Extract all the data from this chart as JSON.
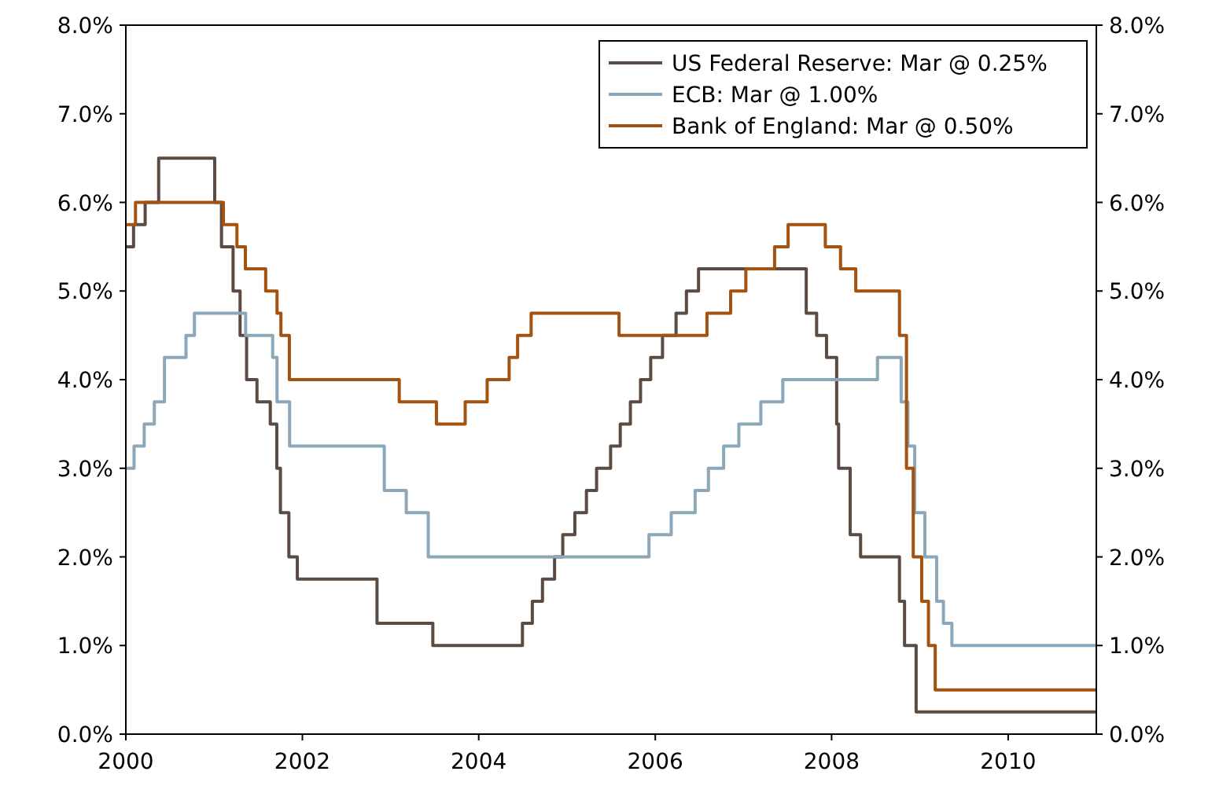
{
  "chart_data": {
    "type": "step",
    "xlim": [
      "2000-01-01",
      "2011-01-01"
    ],
    "xticks": [
      "2000",
      "2002",
      "2004",
      "2006",
      "2008",
      "2010"
    ],
    "ylim": [
      0,
      8
    ],
    "yticks": [
      {
        "value": 0,
        "label": "0.0%"
      },
      {
        "value": 1,
        "label": "1.0%"
      },
      {
        "value": 2,
        "label": "2.0%"
      },
      {
        "value": 3,
        "label": "3.0%"
      },
      {
        "value": 4,
        "label": "4.0%"
      },
      {
        "value": 5,
        "label": "5.0%"
      },
      {
        "value": 6,
        "label": "6.0%"
      },
      {
        "value": 7,
        "label": "7.0%"
      },
      {
        "value": 8,
        "label": "8.0%"
      }
    ],
    "y2lim": [
      0,
      8
    ],
    "y2ticks": [
      {
        "value": 0,
        "label": "0.0%"
      },
      {
        "value": 1,
        "label": "1.0%"
      },
      {
        "value": 2,
        "label": "2.0%"
      },
      {
        "value": 3,
        "label": "3.0%"
      },
      {
        "value": 4,
        "label": "4.0%"
      },
      {
        "value": 5,
        "label": "5.0%"
      },
      {
        "value": 6,
        "label": "6.0%"
      },
      {
        "value": 7,
        "label": "7.0%"
      },
      {
        "value": 8,
        "label": "8.0%"
      }
    ],
    "grid": false,
    "legend": "top right",
    "line_style": "solid",
    "series": [
      {
        "name": "US Federal Reserve: Mar @ 0.25%",
        "color": "#5b4b43",
        "x": [
          "2000-01-01",
          "2000-02-02",
          "2000-03-21",
          "2000-05-16",
          "2001-01-03",
          "2001-01-31",
          "2001-03-20",
          "2001-04-18",
          "2001-05-15",
          "2001-06-27",
          "2001-08-21",
          "2001-09-17",
          "2001-10-02",
          "2001-11-06",
          "2001-12-11",
          "2002-11-06",
          "2003-06-25",
          "2004-06-30",
          "2004-08-10",
          "2004-09-21",
          "2004-11-10",
          "2004-12-14",
          "2005-02-02",
          "2005-03-22",
          "2005-05-03",
          "2005-06-30",
          "2005-08-09",
          "2005-09-20",
          "2005-11-01",
          "2005-12-13",
          "2006-01-31",
          "2006-03-28",
          "2006-05-10",
          "2006-06-29",
          "2007-09-18",
          "2007-10-31",
          "2007-12-11",
          "2008-01-22",
          "2008-01-30",
          "2008-03-18",
          "2008-04-30",
          "2008-10-08",
          "2008-10-29",
          "2008-12-16",
          "2011-01-01"
        ],
        "values": [
          5.5,
          5.75,
          6.0,
          6.5,
          6.0,
          5.5,
          5.0,
          4.5,
          4.0,
          3.75,
          3.5,
          3.0,
          2.5,
          2.0,
          1.75,
          1.25,
          1.0,
          1.25,
          1.5,
          1.75,
          2.0,
          2.25,
          2.5,
          2.75,
          3.0,
          3.25,
          3.5,
          3.75,
          4.0,
          4.25,
          4.5,
          4.75,
          5.0,
          5.25,
          4.75,
          4.5,
          4.25,
          3.5,
          3.0,
          2.25,
          2.0,
          1.5,
          1.0,
          0.25,
          0.25
        ]
      },
      {
        "name": "ECB: Mar @ 1.00%",
        "color": "#8ba7b9",
        "x": [
          "2000-01-01",
          "2000-02-04",
          "2000-03-17",
          "2000-04-28",
          "2000-06-09",
          "2000-09-06",
          "2000-10-11",
          "2001-05-11",
          "2001-08-31",
          "2001-09-18",
          "2001-11-09",
          "2002-12-06",
          "2003-03-07",
          "2003-06-06",
          "2005-12-06",
          "2006-03-08",
          "2006-06-15",
          "2006-08-09",
          "2006-10-11",
          "2006-12-13",
          "2007-03-14",
          "2007-06-13",
          "2008-07-09",
          "2008-10-15",
          "2008-11-12",
          "2008-12-10",
          "2009-01-21",
          "2009-03-11",
          "2009-04-08",
          "2009-05-13",
          "2011-01-01"
        ],
        "values": [
          3.0,
          3.25,
          3.5,
          3.75,
          4.25,
          4.5,
          4.75,
          4.5,
          4.25,
          3.75,
          3.25,
          2.75,
          2.5,
          2.0,
          2.25,
          2.5,
          2.75,
          3.0,
          3.25,
          3.5,
          3.75,
          4.0,
          4.25,
          3.75,
          3.25,
          2.5,
          2.0,
          1.5,
          1.25,
          1.0,
          1.0
        ]
      },
      {
        "name": "Bank of England: Mar @ 0.50%",
        "color": "#a3520f",
        "x": [
          "2000-01-01",
          "2000-02-10",
          "2001-02-08",
          "2001-04-05",
          "2001-05-10",
          "2001-08-02",
          "2001-09-18",
          "2001-10-04",
          "2001-11-08",
          "2003-02-06",
          "2003-07-10",
          "2003-11-06",
          "2004-02-05",
          "2004-05-06",
          "2004-06-10",
          "2004-08-05",
          "2005-08-04",
          "2006-08-03",
          "2006-11-09",
          "2007-01-11",
          "2007-05-10",
          "2007-07-05",
          "2007-12-06",
          "2008-02-07",
          "2008-04-10",
          "2008-10-08",
          "2008-11-06",
          "2008-12-04",
          "2009-01-08",
          "2009-02-05",
          "2009-03-05",
          "2011-01-01"
        ],
        "values": [
          5.75,
          6.0,
          5.75,
          5.5,
          5.25,
          5.0,
          4.75,
          4.5,
          4.0,
          3.75,
          3.5,
          3.75,
          4.0,
          4.25,
          4.5,
          4.75,
          4.5,
          4.75,
          5.0,
          5.25,
          5.5,
          5.75,
          5.5,
          5.25,
          5.0,
          4.5,
          3.0,
          2.0,
          1.5,
          1.0,
          0.5,
          0.5
        ]
      }
    ]
  }
}
